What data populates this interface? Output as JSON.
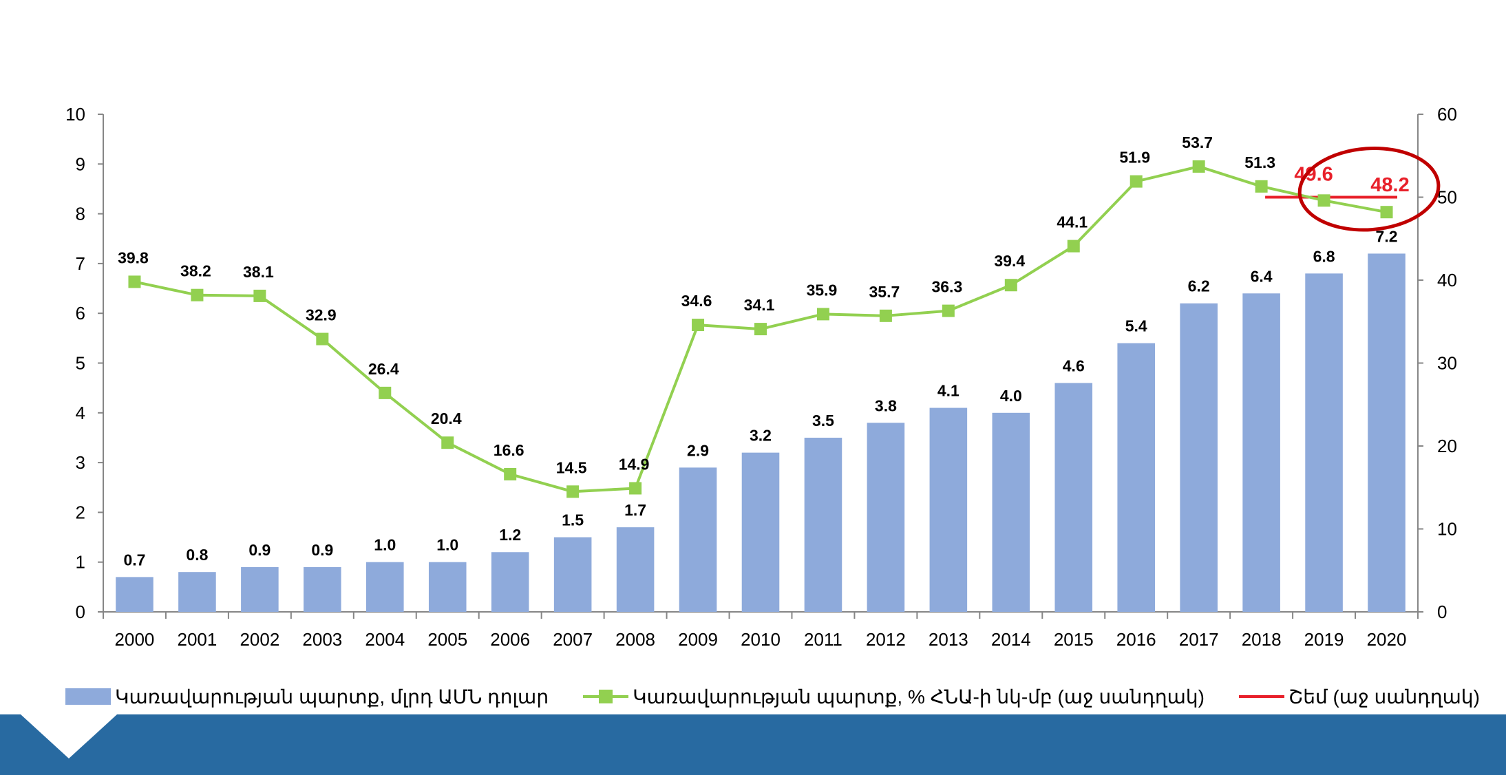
{
  "chart_data": {
    "type": "bar+line",
    "categories": [
      "2000",
      "2001",
      "2002",
      "2003",
      "2004",
      "2005",
      "2006",
      "2007",
      "2008",
      "2009",
      "2010",
      "2011",
      "2012",
      "2013",
      "2014",
      "2015",
      "2016",
      "2017",
      "2018",
      "2019",
      "2020"
    ],
    "series": [
      {
        "name": "Կառավարության պարտք, մլրդ ԱՄՆ դոլար",
        "kind": "bar",
        "axis": "left",
        "color": "#8eaadb",
        "values": [
          0.7,
          0.8,
          0.9,
          0.9,
          1.0,
          1.0,
          1.2,
          1.5,
          1.7,
          2.9,
          3.2,
          3.5,
          3.8,
          4.1,
          4.0,
          4.6,
          5.4,
          6.2,
          6.4,
          6.8,
          7.2
        ],
        "labels": [
          "0.7",
          "0.8",
          "0.9",
          "0.9",
          "1.0",
          "1.0",
          "1.2",
          "1.5",
          "1.7",
          "2.9",
          "3.2",
          "3.5",
          "3.8",
          "4.1",
          "4.0",
          "4.6",
          "5.4",
          "6.2",
          "6.4",
          "6.8",
          "7.2"
        ]
      },
      {
        "name": "Կառավարության պարտք, % ՀՆԱ-ի նկ-մբ (աջ սանդղակ)",
        "kind": "line",
        "axis": "right",
        "color": "#92d050",
        "marker": "square",
        "values": [
          39.8,
          38.2,
          38.1,
          32.9,
          26.4,
          20.4,
          16.6,
          14.5,
          14.9,
          34.6,
          34.1,
          35.9,
          35.7,
          36.3,
          39.4,
          44.1,
          51.9,
          53.7,
          51.3,
          49.6,
          48.2
        ],
        "labels": [
          "39.8",
          "38.2",
          "38.1",
          "32.9",
          "26.4",
          "20.4",
          "16.6",
          "14.5",
          "14.9",
          "34.6",
          "34.1",
          "35.9",
          "35.7",
          "36.3",
          "39.4",
          "44.1",
          "51.9",
          "53.7",
          "51.3",
          "49.6",
          "48.2"
        ]
      },
      {
        "name": "Շեմ (աջ սանդղակ)",
        "kind": "threshold",
        "axis": "right",
        "color": "#e8202a",
        "value": 50
      }
    ],
    "highlight": {
      "categories": [
        "2019",
        "2020"
      ],
      "color": "#e8202a",
      "shape": "ellipse"
    },
    "ylim_left": [
      0,
      10
    ],
    "yticks_left": [
      "0",
      "1",
      "2",
      "3",
      "4",
      "5",
      "6",
      "7",
      "8",
      "9",
      "10"
    ],
    "ylim_right": [
      0,
      60
    ],
    "yticks_right": [
      "0",
      "10",
      "20",
      "30",
      "40",
      "50",
      "60"
    ],
    "title": "",
    "xlabel": "",
    "ylabel": "",
    "grid": false,
    "legend_position": "bottom"
  },
  "footer": {
    "color": "#286aa1"
  }
}
